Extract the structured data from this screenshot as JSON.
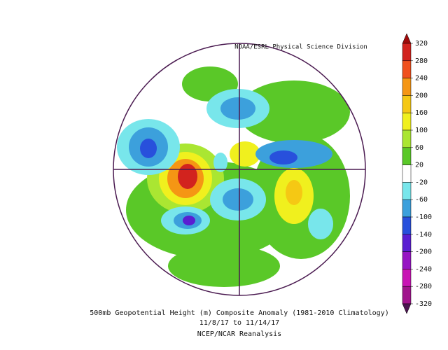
{
  "header": {
    "source": "NOAA/ESRL Physical Science Division"
  },
  "caption": {
    "line1": "500mb Geopotential Height (m) Composite Anomaly (1981-2010 Climatology)",
    "line2": "11/8/17  to 11/14/17",
    "line3": "NCEP/NCAR Reanalysis"
  },
  "colorbar": {
    "levels": [
      320,
      280,
      240,
      200,
      160,
      100,
      60,
      20,
      -20,
      -60,
      -100,
      -140,
      -200,
      -240,
      -280,
      -320
    ],
    "colors": [
      "#a00a0a",
      "#d2231e",
      "#f0501e",
      "#f59614",
      "#f5c814",
      "#f0f01e",
      "#aae632",
      "#5ac828",
      "#ffffff",
      "#78e6eb",
      "#3ca0dc",
      "#2850dc",
      "#5a1ed2",
      "#9614c3",
      "#c814b4",
      "#a0148c",
      "#4b1450"
    ]
  }
}
